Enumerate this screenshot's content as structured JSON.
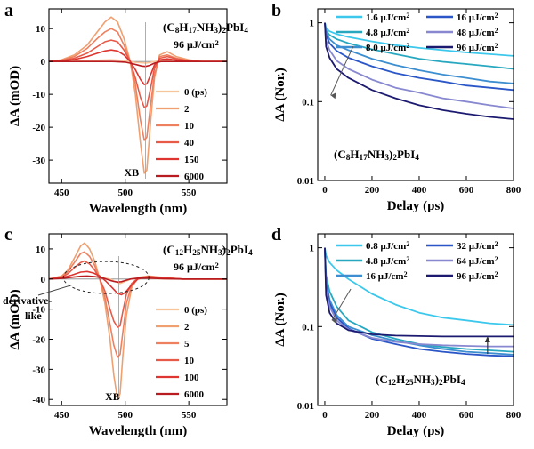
{
  "chart_data": [
    {
      "panel": "a",
      "type": "line",
      "title": "",
      "xlabel": "Wavelength (nm)",
      "ylabel": "ΔA (mOD)",
      "xlim": [
        440,
        580
      ],
      "ylim": [
        -37,
        16
      ],
      "xticks": [
        450,
        500,
        550
      ],
      "yticks": [
        10,
        0,
        -10,
        -20,
        -30
      ],
      "legend_placement": "bottom-right",
      "legend_title": "",
      "series": [
        {
          "name": "0 (ps)",
          "color": "#f8c49a",
          "x": [
            440,
            450,
            460,
            470,
            480,
            488,
            495,
            500,
            505,
            509,
            513,
            516,
            519,
            523,
            528,
            535,
            545,
            560,
            580
          ],
          "y": [
            0,
            0,
            0.1,
            0.2,
            0.4,
            0.5,
            0.4,
            0.2,
            -0.1,
            -0.3,
            -0.4,
            -0.5,
            -0.3,
            0,
            0.3,
            0.1,
            0,
            0,
            0
          ]
        },
        {
          "name": "2",
          "color": "#f0a070",
          "x": [
            440,
            450,
            460,
            470,
            478,
            484,
            489,
            494,
            499,
            504,
            508,
            512,
            515,
            517,
            520,
            523,
            527,
            533,
            540,
            550,
            560,
            580
          ],
          "y": [
            0,
            0.5,
            2,
            5,
            9,
            12,
            13.5,
            12,
            7,
            0,
            -10,
            -25,
            -34,
            -33,
            -18,
            -5,
            2,
            3,
            1.5,
            0.5,
            0,
            0
          ]
        },
        {
          "name": "10",
          "color": "#ee8060",
          "x": [
            440,
            450,
            460,
            470,
            478,
            484,
            489,
            494,
            499,
            504,
            508,
            512,
            515,
            517,
            520,
            523,
            527,
            533,
            540,
            550,
            560,
            580
          ],
          "y": [
            0,
            0.4,
            1.5,
            4,
            7,
            9,
            10,
            9,
            5,
            0,
            -7,
            -18,
            -24,
            -23,
            -13,
            -4,
            1.5,
            2,
            1,
            0.3,
            0,
            0
          ]
        },
        {
          "name": "40",
          "color": "#e85a48",
          "x": [
            440,
            450,
            460,
            470,
            478,
            484,
            489,
            494,
            499,
            504,
            508,
            512,
            515,
            517,
            520,
            523,
            527,
            533,
            540,
            550,
            560,
            580
          ],
          "y": [
            0,
            0.3,
            1,
            2.5,
            4.5,
            6,
            6.5,
            6,
            3.5,
            0,
            -5,
            -11,
            -14,
            -13.5,
            -8,
            -2,
            1,
            1.5,
            0.8,
            0.2,
            0,
            0
          ]
        },
        {
          "name": "150",
          "color": "#de3530",
          "x": [
            440,
            450,
            460,
            470,
            478,
            484,
            489,
            494,
            499,
            504,
            508,
            512,
            515,
            517,
            520,
            523,
            527,
            533,
            540,
            550,
            560,
            580
          ],
          "y": [
            0,
            0.2,
            0.6,
            1.5,
            2.5,
            3.2,
            3.5,
            3.2,
            2,
            0,
            -2.5,
            -5.5,
            -7,
            -6.8,
            -4,
            -1,
            0.5,
            0.8,
            0.4,
            0.1,
            0,
            0
          ]
        },
        {
          "name": "6000",
          "color": "#b81c20",
          "x": [
            440,
            450,
            460,
            470,
            480,
            490,
            500,
            505,
            510,
            513,
            516,
            519,
            523,
            528,
            535,
            545,
            560,
            580
          ],
          "y": [
            0,
            0,
            0,
            0,
            0,
            0,
            -0.2,
            -0.6,
            -1.1,
            -1.4,
            -1.5,
            -1.2,
            -0.5,
            0,
            0,
            0,
            0,
            0
          ]
        }
      ],
      "annotations": [
        "(C8H17NH3)2PbI4",
        "96 μJ/cm2",
        "XB"
      ]
    },
    {
      "panel": "b",
      "type": "line",
      "title": "",
      "xlabel": "Delay (ps)",
      "ylabel": "ΔA (Nor.)",
      "xlim": [
        -30,
        800
      ],
      "ylim": [
        0.01,
        1.5
      ],
      "yscale": "log",
      "xticks": [
        0,
        200,
        400,
        600,
        800
      ],
      "yticks": [
        1,
        0.1,
        0.01
      ],
      "legend_placement": "top",
      "series": [
        {
          "name": "1.6 μJ/cm2",
          "color": "#3cc8ec",
          "x": [
            0,
            5,
            20,
            50,
            100,
            200,
            300,
            400,
            500,
            600,
            700,
            800
          ],
          "y": [
            1,
            0.85,
            0.78,
            0.72,
            0.66,
            0.58,
            0.52,
            0.48,
            0.45,
            0.42,
            0.4,
            0.38
          ]
        },
        {
          "name": "4.8 μJ/cm2",
          "color": "#28a8c0",
          "x": [
            0,
            5,
            20,
            50,
            100,
            200,
            300,
            400,
            500,
            600,
            700,
            800
          ],
          "y": [
            1,
            0.8,
            0.7,
            0.62,
            0.55,
            0.46,
            0.4,
            0.35,
            0.32,
            0.3,
            0.28,
            0.26
          ]
        },
        {
          "name": "8.0 μJ/cm2",
          "color": "#3c8ed0",
          "x": [
            0,
            5,
            20,
            50,
            100,
            200,
            300,
            400,
            500,
            600,
            700,
            800
          ],
          "y": [
            1,
            0.75,
            0.62,
            0.52,
            0.45,
            0.35,
            0.29,
            0.25,
            0.22,
            0.2,
            0.18,
            0.17
          ]
        },
        {
          "name": "16 μJ/cm2",
          "color": "#2a56c8",
          "x": [
            0,
            5,
            20,
            50,
            100,
            200,
            300,
            400,
            500,
            600,
            700,
            800
          ],
          "y": [
            1,
            0.7,
            0.55,
            0.44,
            0.36,
            0.28,
            0.23,
            0.2,
            0.18,
            0.16,
            0.15,
            0.14
          ]
        },
        {
          "name": "48 μJ/cm2",
          "color": "#8888d0",
          "x": [
            0,
            5,
            20,
            50,
            100,
            200,
            300,
            400,
            500,
            600,
            700,
            800
          ],
          "y": [
            1,
            0.6,
            0.45,
            0.33,
            0.26,
            0.19,
            0.15,
            0.13,
            0.11,
            0.1,
            0.09,
            0.082
          ]
        },
        {
          "name": "96 μJ/cm2",
          "color": "#1c1a70",
          "x": [
            0,
            5,
            20,
            50,
            100,
            200,
            300,
            400,
            500,
            600,
            700,
            800
          ],
          "y": [
            1,
            0.5,
            0.36,
            0.26,
            0.2,
            0.14,
            0.11,
            0.09,
            0.078,
            0.07,
            0.064,
            0.06
          ]
        }
      ],
      "annotations": [
        "(C8H17NH3)2PbI4"
      ]
    },
    {
      "panel": "c",
      "type": "line",
      "title": "",
      "xlabel": "Wavelength (nm)",
      "ylabel": "ΔA (mOD)",
      "xlim": [
        440,
        580
      ],
      "ylim": [
        -42,
        15
      ],
      "xticks": [
        450,
        500,
        550
      ],
      "yticks": [
        10,
        0,
        -10,
        -20,
        -30,
        -40
      ],
      "legend_placement": "bottom-right",
      "series": [
        {
          "name": "0 (ps)",
          "color": "#f8c49a",
          "x": [
            440,
            450,
            458,
            465,
            472,
            480,
            488,
            492,
            496,
            500,
            505,
            512,
            520,
            530,
            545,
            560,
            580
          ],
          "y": [
            0,
            0.3,
            0.6,
            0.8,
            0.8,
            0.6,
            0,
            -0.8,
            -1.5,
            -0.8,
            0.1,
            0.4,
            0.2,
            0,
            0,
            0,
            0
          ]
        },
        {
          "name": "2",
          "color": "#f0a070",
          "x": [
            440,
            450,
            455,
            460,
            465,
            468,
            472,
            476,
            480,
            484,
            488,
            491,
            494,
            496,
            498,
            501,
            505,
            510,
            518,
            530,
            545,
            560,
            580
          ],
          "y": [
            0,
            1,
            3,
            7,
            11,
            12,
            10,
            6,
            0,
            -8,
            -20,
            -32,
            -40,
            -38,
            -26,
            -12,
            -3,
            0.5,
            1,
            0.5,
            0,
            0,
            0
          ]
        },
        {
          "name": "5",
          "color": "#ee8060",
          "x": [
            440,
            450,
            455,
            460,
            465,
            468,
            472,
            476,
            480,
            484,
            488,
            491,
            494,
            496,
            498,
            501,
            505,
            510,
            518,
            530,
            545,
            560,
            580
          ],
          "y": [
            0,
            0.8,
            2.5,
            5.5,
            8.5,
            9,
            7.5,
            4.5,
            0,
            -6,
            -15,
            -22,
            -26,
            -25,
            -18,
            -8,
            -2,
            0.4,
            0.8,
            0.4,
            0,
            0,
            0
          ]
        },
        {
          "name": "10",
          "color": "#e85a48",
          "x": [
            440,
            450,
            455,
            460,
            465,
            468,
            472,
            476,
            480,
            484,
            488,
            491,
            494,
            496,
            498,
            501,
            505,
            510,
            518,
            530,
            545,
            560,
            580
          ],
          "y": [
            0,
            0.6,
            1.8,
            3.8,
            5.5,
            6,
            5,
            3,
            0,
            -4,
            -10,
            -14,
            -16,
            -15.5,
            -11,
            -5,
            -1.5,
            0.3,
            0.6,
            0.3,
            0,
            0,
            0
          ]
        },
        {
          "name": "100",
          "color": "#de3530",
          "x": [
            440,
            450,
            458,
            465,
            470,
            475,
            480,
            485,
            490,
            494,
            497,
            500,
            504,
            510,
            518,
            530,
            545,
            560,
            580
          ],
          "y": [
            0,
            0.4,
            1.3,
            2.3,
            2.5,
            2,
            1,
            -0.8,
            -3,
            -4.8,
            -5.2,
            -4.5,
            -2.5,
            0,
            0.8,
            0.4,
            0,
            0,
            0
          ]
        },
        {
          "name": "6000",
          "color": "#b81c20",
          "x": [
            440,
            450,
            458,
            465,
            470,
            476,
            482,
            487,
            491,
            494,
            497,
            500,
            504,
            510,
            518,
            530,
            545,
            560,
            580
          ],
          "y": [
            0,
            0.2,
            0.6,
            0.9,
            1,
            0.8,
            0.4,
            -0.3,
            -0.8,
            -1,
            -0.9,
            -0.5,
            0,
            0.3,
            0.3,
            0.1,
            0,
            0,
            0
          ]
        }
      ],
      "annotations": [
        "(C12H25NH3)2PbI4",
        "96 μJ/cm2",
        "derivative-like",
        "XB"
      ]
    },
    {
      "panel": "d",
      "type": "line",
      "title": "",
      "xlabel": "Delay (ps)",
      "ylabel": "ΔA (Nor.)",
      "xlim": [
        -30,
        800
      ],
      "ylim": [
        0.01,
        1.5
      ],
      "yscale": "log",
      "xticks": [
        0,
        200,
        400,
        600,
        800
      ],
      "yticks": [
        1,
        0.1,
        0.01
      ],
      "legend_placement": "top",
      "series": [
        {
          "name": "0.8 μJ/cm2",
          "color": "#3cc8ec",
          "x": [
            0,
            5,
            20,
            50,
            100,
            200,
            300,
            400,
            500,
            600,
            700,
            800
          ],
          "y": [
            1,
            0.8,
            0.65,
            0.52,
            0.4,
            0.26,
            0.19,
            0.15,
            0.13,
            0.12,
            0.11,
            0.105
          ]
        },
        {
          "name": "4.8 μJ/cm2",
          "color": "#28a8c0",
          "x": [
            0,
            5,
            20,
            50,
            100,
            200,
            300,
            400,
            500,
            600,
            700,
            800
          ],
          "y": [
            1,
            0.45,
            0.28,
            0.18,
            0.12,
            0.085,
            0.07,
            0.06,
            0.055,
            0.052,
            0.05,
            0.048
          ]
        },
        {
          "name": "16  μJ/cm2",
          "color": "#3c8ed0",
          "x": [
            0,
            5,
            20,
            50,
            100,
            200,
            300,
            400,
            500,
            600,
            700,
            800
          ],
          "y": [
            1,
            0.38,
            0.22,
            0.14,
            0.1,
            0.078,
            0.066,
            0.058,
            0.052,
            0.048,
            0.046,
            0.044
          ]
        },
        {
          "name": "32  μJ/cm2",
          "color": "#2a56c8",
          "x": [
            0,
            5,
            20,
            50,
            100,
            200,
            300,
            400,
            500,
            600,
            700,
            800
          ],
          "y": [
            1,
            0.35,
            0.2,
            0.13,
            0.095,
            0.07,
            0.06,
            0.052,
            0.048,
            0.045,
            0.043,
            0.042
          ]
        },
        {
          "name": "64  μJ/cm2",
          "color": "#8888d0",
          "x": [
            0,
            5,
            20,
            50,
            100,
            200,
            300,
            400,
            500,
            600,
            700,
            800
          ],
          "y": [
            1,
            0.3,
            0.18,
            0.12,
            0.092,
            0.072,
            0.064,
            0.06,
            0.058,
            0.057,
            0.056,
            0.056
          ]
        },
        {
          "name": "96 μJ/cm2",
          "color": "#1c1a70",
          "x": [
            0,
            5,
            20,
            50,
            100,
            200,
            300,
            400,
            500,
            600,
            700,
            800
          ],
          "y": [
            1,
            0.25,
            0.15,
            0.11,
            0.09,
            0.08,
            0.077,
            0.076,
            0.075,
            0.075,
            0.075,
            0.075
          ]
        }
      ],
      "annotations": [
        "(C12H25NH3)2PbI4"
      ]
    }
  ]
}
